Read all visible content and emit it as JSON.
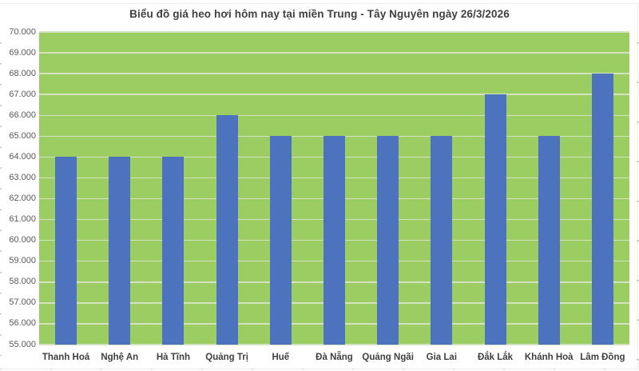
{
  "chart_data": {
    "type": "bar",
    "title": "Biểu đồ giá heo hơi hôm nay tại miền Trung - Tây Nguyên ngày 26/3/2026",
    "categories": [
      "Thanh Hoá",
      "Nghệ An",
      "Hà Tĩnh",
      "Quảng Trị",
      "Huế",
      "Đà Nẵng",
      "Quảng Ngãi",
      "Gia Lai",
      "Đắk Lắk",
      "Khánh Hoà",
      "Lâm Đồng"
    ],
    "values": [
      64000,
      64000,
      64000,
      66000,
      65000,
      65000,
      65000,
      65000,
      67000,
      65000,
      68000
    ],
    "xlabel": "",
    "ylabel": "",
    "ylim": [
      55000,
      70000
    ],
    "ytick_step": 1000,
    "ytick_labels": [
      "70.000",
      "69.000",
      "68.000",
      "67.000",
      "66.000",
      "65.000",
      "64.000",
      "63.000",
      "62.000",
      "61.000",
      "60.000",
      "59.000",
      "58.000",
      "57.000",
      "56.000",
      "55.000"
    ],
    "grid": true,
    "legend": "none",
    "colors": {
      "bar_fill": "#4d72be",
      "plot_background": "#9ccd63",
      "gridline": "#d4e2c0",
      "title_text": "#404040",
      "ytick_text": "#595959",
      "xtick_text": "#404040",
      "page_background": "#ffffff"
    }
  }
}
